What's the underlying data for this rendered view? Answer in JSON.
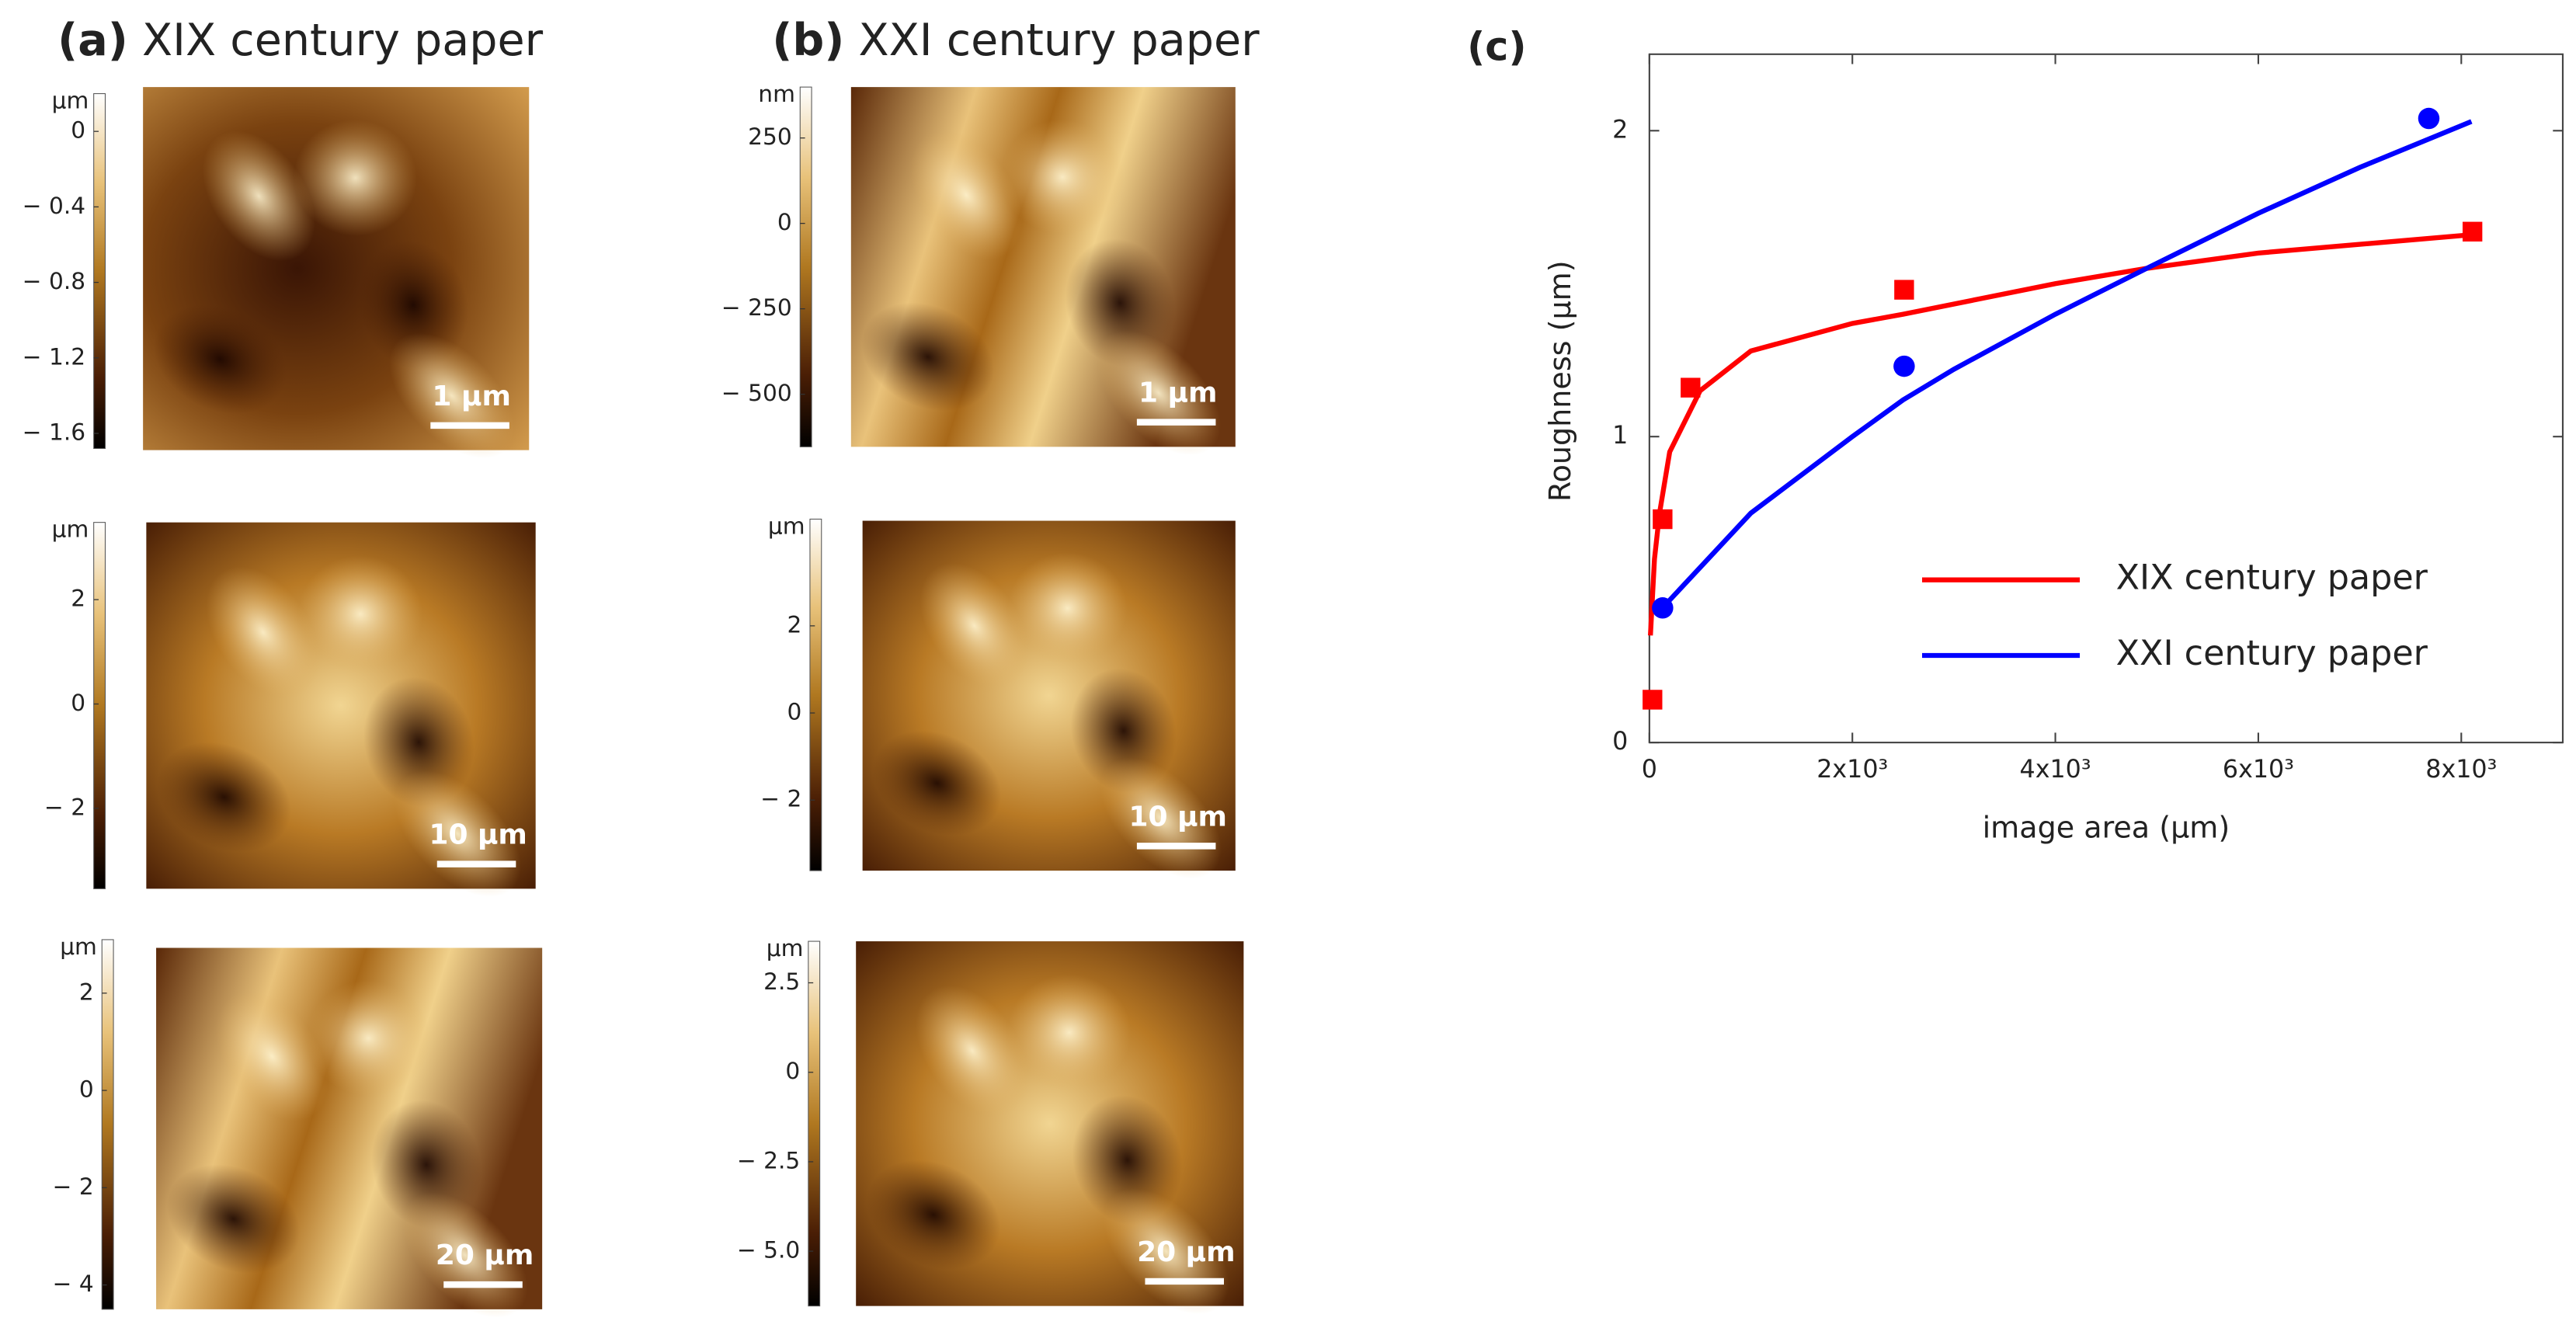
{
  "panels": [
    {
      "label": "(a)",
      "title": "XIX century paper",
      "images": [
        {
          "unit": "μm",
          "lim": [
            -1.68,
            0.2
          ],
          "ticks": [
            0,
            {
              "value": -0.4,
              "label": "− 0.4"
            },
            {
              "value": -0.8,
              "label": "− 0.8"
            },
            {
              "value": -1.2,
              "label": "− 1.2"
            },
            {
              "value": -1.6,
              "label": "− 1.6"
            }
          ],
          "scale_bar": "1 μm"
        },
        {
          "unit": "μm",
          "lim": [
            -3.54,
            3.48
          ],
          "ticks": [
            2,
            0,
            {
              "value": -2,
              "label": "− 2"
            }
          ],
          "scale_bar": "10 μm"
        },
        {
          "unit": "μm",
          "lim": [
            -4.5,
            3.1
          ],
          "ticks": [
            2,
            0,
            {
              "value": -2,
              "label": "− 2"
            },
            {
              "value": -4,
              "label": "− 4"
            }
          ],
          "scale_bar": "20 μm"
        }
      ]
    },
    {
      "label": "(b)",
      "title": "XXI century paper",
      "images": [
        {
          "unit": "nm",
          "lim": [
            -654,
            399
          ],
          "ticks": [
            250,
            0,
            {
              "value": -250,
              "label": "− 250"
            },
            {
              "value": -500,
              "label": "− 500"
            }
          ],
          "scale_bar": "1 μm"
        },
        {
          "unit": "μm",
          "lim": [
            -3.62,
            4.45
          ],
          "ticks": [
            2,
            0,
            {
              "value": -2,
              "label": "− 2"
            }
          ],
          "scale_bar": "10 μm"
        },
        {
          "unit": "μm",
          "lim": [
            -6.53,
            3.66
          ],
          "ticks": [
            2.5,
            0,
            {
              "value": -2.5,
              "label": "− 2.5"
            },
            {
              "value": -5,
              "label": "− 5.0"
            }
          ],
          "scale_bar": "20 μm"
        }
      ]
    }
  ],
  "chart_data": {
    "type": "scatter",
    "label": "(c)",
    "x_label": "image area (μm)",
    "y_label": "Roughness (μm)",
    "xlim": [
      0,
      9000
    ],
    "ylim": [
      0,
      2.25
    ],
    "xticks": [
      0,
      {
        "value": 2000,
        "label": "2x10³"
      },
      {
        "value": 4000,
        "label": "4x10³"
      },
      {
        "value": 6000,
        "label": "6x10³"
      },
      {
        "value": 8000,
        "label": "8x10³"
      }
    ],
    "yticks": [
      0,
      1,
      2
    ],
    "legend": "right",
    "series": [
      {
        "name": "XIX century paper",
        "color": "#ff0000",
        "marker": "square",
        "x": [
          30,
          130,
          405,
          2510,
          8110
        ],
        "values": [
          0.14,
          0.73,
          1.16,
          1.48,
          1.67
        ],
        "fit_x": [
          10,
          50,
          100,
          200,
          500,
          1000,
          2000,
          2500,
          4000,
          4900,
          6000,
          8100
        ],
        "fit_values": [
          0.35,
          0.6,
          0.75,
          0.95,
          1.15,
          1.28,
          1.37,
          1.4,
          1.5,
          1.55,
          1.6,
          1.66
        ]
      },
      {
        "name": "XXI century paper",
        "color": "#0000ff",
        "marker": "circle",
        "x": [
          130,
          2510,
          7680
        ],
        "values": [
          0.44,
          1.23,
          2.04
        ],
        "fit_x": [
          100,
          1000,
          2000,
          2500,
          3000,
          4000,
          4900,
          6000,
          7000,
          8100
        ],
        "fit_values": [
          0.43,
          0.75,
          1.0,
          1.12,
          1.22,
          1.4,
          1.55,
          1.73,
          1.88,
          2.03
        ]
      }
    ]
  }
}
